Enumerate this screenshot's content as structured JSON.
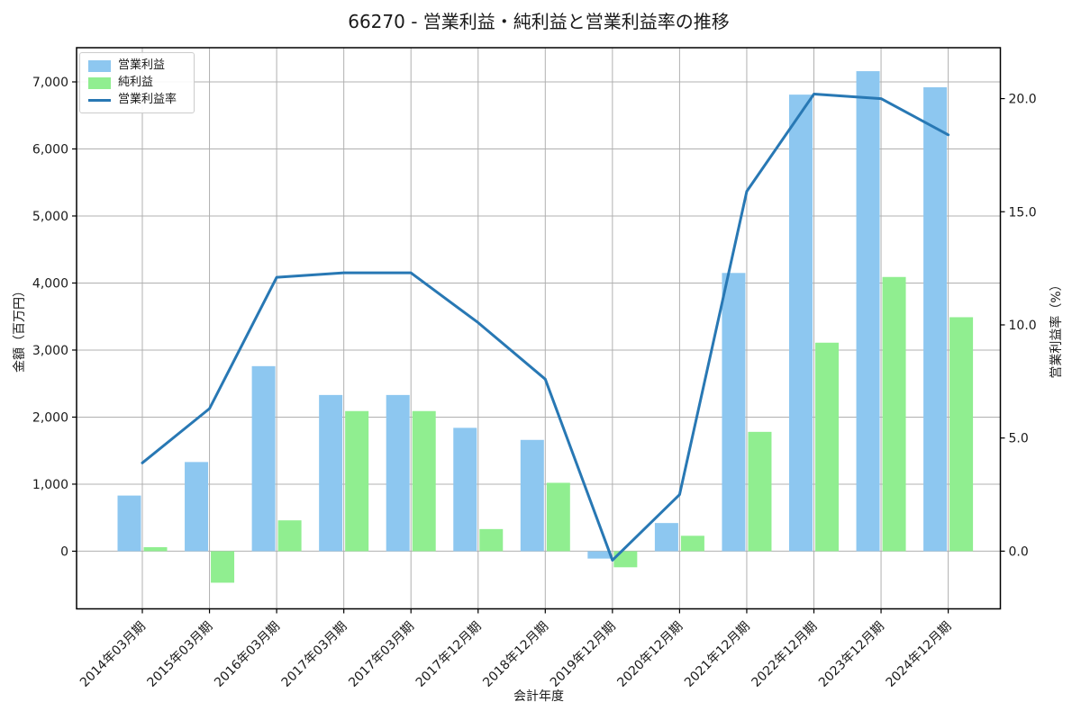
{
  "chart_data": {
    "type": "bar+line",
    "title": "66270 - 営業利益・純利益と営業利益率の推移",
    "xlabel": "会計年度",
    "ylabel_left": "金額（百万円）",
    "ylabel_right": "営業利益率（%）",
    "categories": [
      "2014年03月期",
      "2015年03月期",
      "2016年03月期",
      "2017年03月期",
      "2017年03月期",
      "2017年12月期",
      "2018年12月期",
      "2019年12月期",
      "2020年12月期",
      "2021年12月期",
      "2022年12月期",
      "2023年12月期",
      "2024年12月期"
    ],
    "series": [
      {
        "key": "operating-profit",
        "name": "営業利益",
        "type": "bar",
        "axis": "left",
        "color": "#8dc7f0",
        "values": [
          830,
          1330,
          2760,
          2330,
          2330,
          1840,
          1660,
          -110,
          420,
          4150,
          6810,
          7160,
          6920
        ]
      },
      {
        "key": "net-profit",
        "name": "純利益",
        "type": "bar",
        "axis": "left",
        "color": "#90ee90",
        "values": [
          60,
          -470,
          460,
          2090,
          2090,
          330,
          1020,
          -240,
          230,
          1780,
          3110,
          4090,
          3490
        ]
      },
      {
        "key": "operating-margin",
        "name": "営業利益率",
        "type": "line",
        "axis": "right",
        "color": "#2878b4",
        "values": [
          3.9,
          6.3,
          12.1,
          12.3,
          12.3,
          10.1,
          7.6,
          -0.4,
          2.5,
          15.9,
          20.2,
          20.0,
          18.4
        ]
      }
    ],
    "left_axis": {
      "tick_values": [
        0,
        1000,
        2000,
        3000,
        4000,
        5000,
        6000,
        7000
      ],
      "tick_labels": [
        "0",
        "1,000",
        "2,000",
        "3,000",
        "4,000",
        "5,000",
        "6,000",
        "7,000"
      ],
      "range": [
        -860,
        7510
      ]
    },
    "right_axis": {
      "tick_values": [
        0,
        5,
        10,
        15,
        20
      ],
      "tick_labels": [
        "0.0",
        "5.0",
        "10.0",
        "15.0",
        "20.0"
      ],
      "range": [
        -2.55,
        22.25
      ]
    },
    "grid": true,
    "grid_color": "#b0b0b0",
    "background": "#ffffff",
    "legend_position": "upper-left"
  }
}
